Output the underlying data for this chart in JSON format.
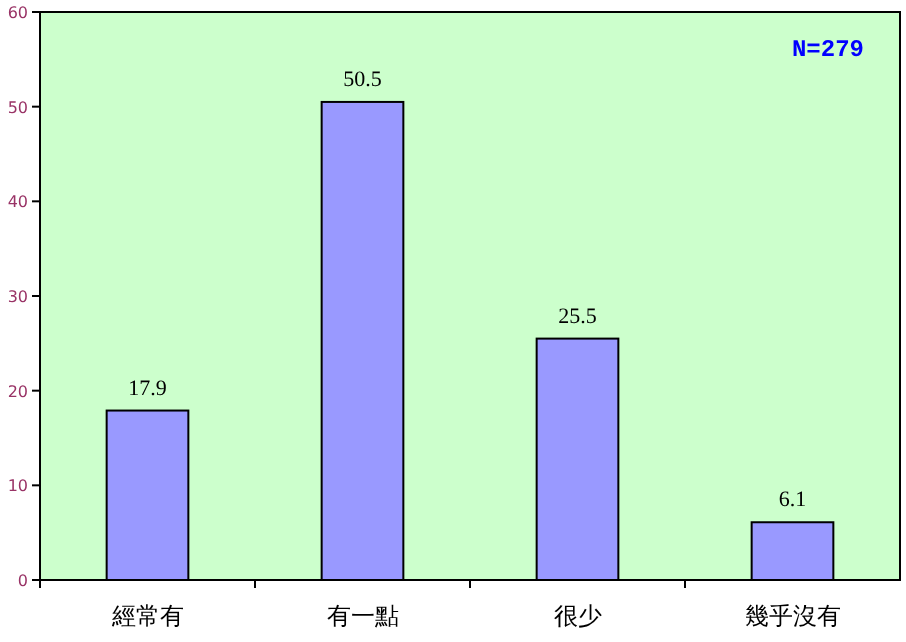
{
  "chart_data": {
    "type": "bar",
    "categories": [
      "經常有",
      "有一點",
      "很少",
      "幾乎沒有"
    ],
    "values": [
      17.9,
      50.5,
      25.5,
      6.1
    ],
    "color": "#9999ff",
    "ylim": [
      0,
      60
    ],
    "yticks": [
      0,
      10,
      20,
      30,
      40,
      50,
      60
    ],
    "data_labels": true,
    "annotations": [
      "N=279"
    ]
  }
}
